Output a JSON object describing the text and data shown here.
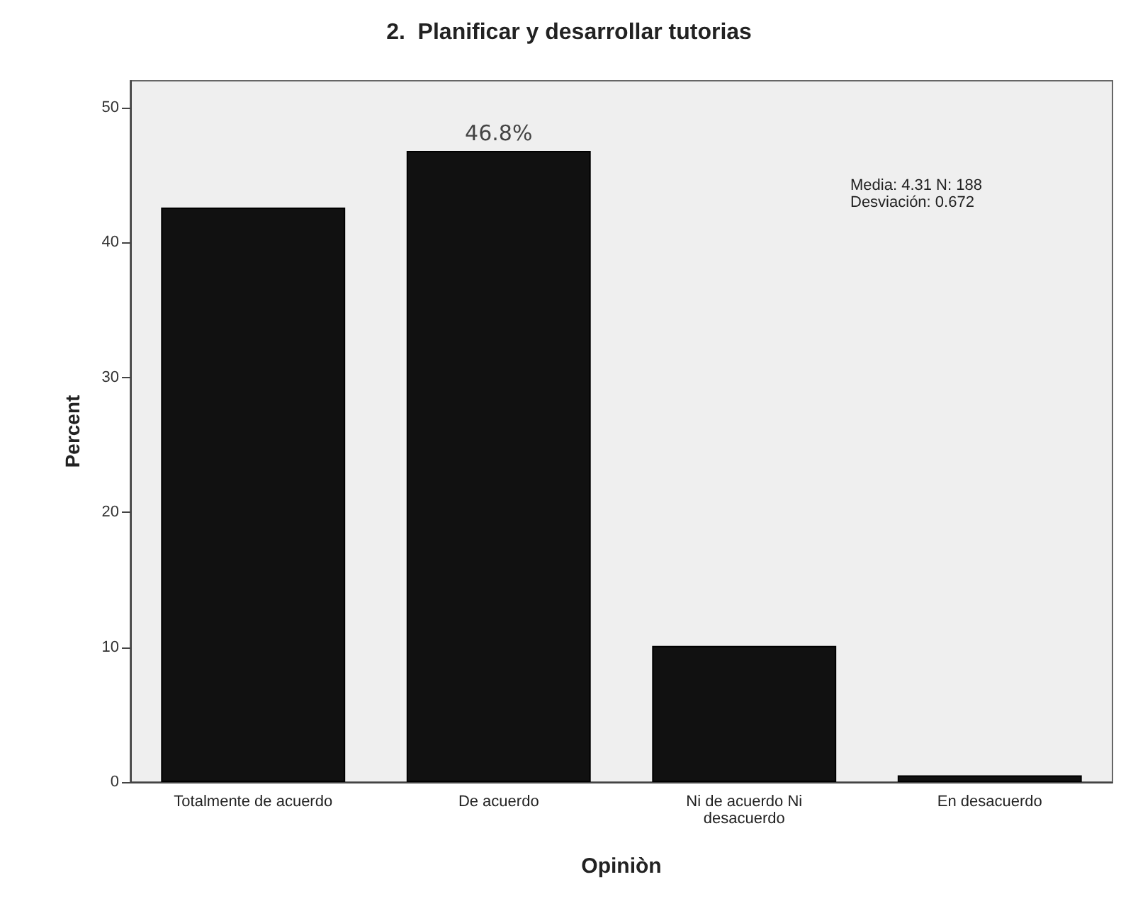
{
  "chart_data": {
    "type": "bar",
    "title": "2.  Planificar y desarrollar tutorias",
    "xlabel": "Opiniòn",
    "ylabel": "Percent",
    "categories": [
      "Totalmente de acuerdo",
      "De acuerdo",
      "Ni de acuerdo Ni\ndesacuerdo",
      "En desacuerdo"
    ],
    "values": [
      42.6,
      46.8,
      10.1,
      0.5
    ],
    "value_labels": [
      null,
      "46.8%",
      null,
      null
    ],
    "color": "#111111",
    "ylim": [
      0,
      52
    ],
    "yticks": [
      0,
      10,
      20,
      30,
      40,
      50
    ],
    "annotations": [
      "Media: 4.31 N: 188",
      "Desviación: 0.672"
    ]
  }
}
